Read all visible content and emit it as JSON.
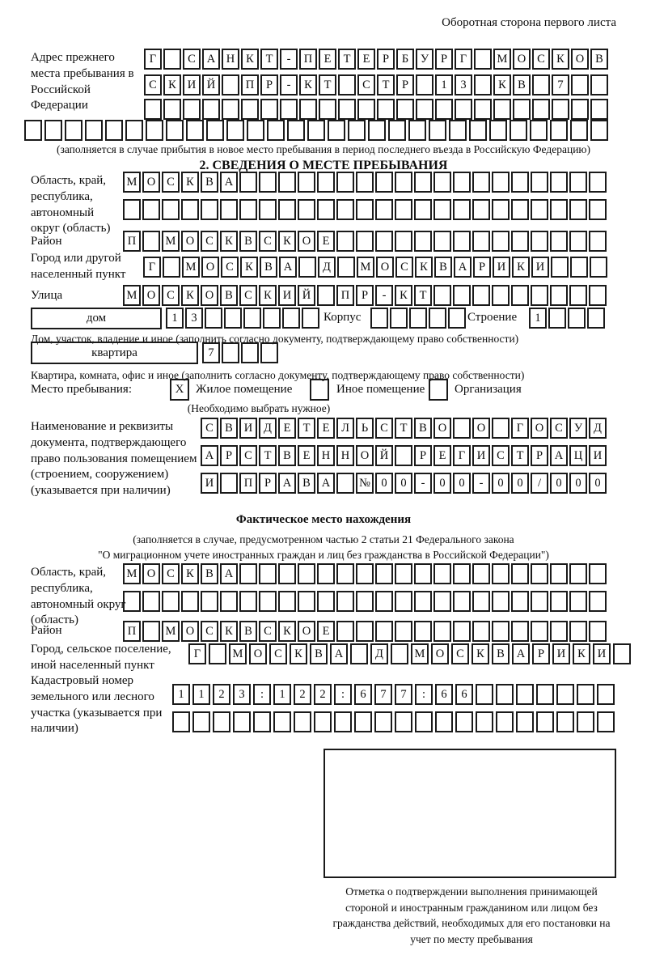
{
  "header": {
    "note": "Оборотная сторона первого листа"
  },
  "prev_address": {
    "label": "Адрес прежнего места пребывания в Российской Федерации",
    "rows": [
      {
        "len": 24,
        "text": "Г САНКТ-ПЕТЕРБУРГ МОСКОВ"
      },
      {
        "len": 24,
        "text": "СКИЙ ПР-КТ СТР 13 КВ 7"
      },
      {
        "len": 24,
        "text": ""
      },
      {
        "len": 29,
        "text": ""
      }
    ],
    "note": "(заполняется в случае прибытия в новое место пребывания в период последнего въезда в Российскую Федерацию)"
  },
  "section2": {
    "title": "2. СВЕДЕНИЯ О МЕСТЕ ПРЕБЫВАНИЯ",
    "region": {
      "label": "Область, край, республика, автономный округ (область)",
      "rows": [
        {
          "len": 25,
          "text": "МОСКВА"
        },
        {
          "len": 25,
          "text": ""
        }
      ]
    },
    "district": {
      "label": "Район",
      "row": {
        "len": 25,
        "text": "П МОСКВСКОЕ"
      }
    },
    "city": {
      "label": "Город или другой населенный пункт",
      "row": {
        "len": 24,
        "text": "Г МОСКВА Д МОСКВАРИКИ"
      }
    },
    "street": {
      "label": "Улица",
      "row": {
        "len": 25,
        "text": "МОСКОВСКИЙ ПР-КТ"
      }
    },
    "house": {
      "type_label": "дом",
      "number": {
        "len": 8,
        "text": "13"
      },
      "korpus_label": "Корпус",
      "korpus": {
        "len": 5,
        "text": ""
      },
      "stroenie_label": "Строение",
      "stroenie": {
        "len": 4,
        "text": "1"
      },
      "caption": "Дом, участок, владение и иное (заполнить согласно документу, подтверждающему право собственности)"
    },
    "apartment": {
      "type_label": "квартира",
      "number": {
        "len": 4,
        "text": "7"
      },
      "caption": "Квартира, комната, офис и иное (заполнить согласно документу, подтверждающему право собственности)"
    },
    "stay_type": {
      "label": "Место пребывания:",
      "options": [
        {
          "label": "Жилое помещение",
          "checked": "X"
        },
        {
          "label": "Иное помещение",
          "checked": ""
        },
        {
          "label": "Организация",
          "checked": ""
        }
      ],
      "note": "(Необходимо выбрать нужное)"
    },
    "document": {
      "label": "Наименование и реквизиты документа, подтверждающего право пользования помещением (строением, сооружением) (указывается при наличии)",
      "rows": [
        {
          "len": 21,
          "text": "СВИДЕТЕЛЬСТВО О ГОСУД"
        },
        {
          "len": 21,
          "text": "АРСТВЕННОЙ РЕГИСТРАЦИ"
        },
        {
          "len": 21,
          "text": "И ПРАВА №00-00-00/000"
        }
      ]
    }
  },
  "actual_location": {
    "title": "Фактическое место нахождения",
    "note_line1": "(заполняется в случае, предусмотренном частью 2 статьи 21 Федерального закона",
    "note_line2": "\"О миграционном учете иностранных граждан и лиц без гражданства в Российской Федерации\")",
    "region": {
      "label": "Область, край, республика, автономный округ (область)",
      "rows": [
        {
          "len": 25,
          "text": "МОСКВА"
        },
        {
          "len": 25,
          "text": ""
        }
      ]
    },
    "district": {
      "label": "Район",
      "row": {
        "len": 25,
        "text": "П МОСКВСКОЕ"
      }
    },
    "city": {
      "label": "Город, сельское поселение, иной населенный пункт",
      "row": {
        "len": 22,
        "text": "Г МОСКВА Д МОСКВАРИКИ"
      }
    },
    "cadastral": {
      "label": "Кадастровый номер земельного или лесного участка (указывается при наличии)",
      "rows": [
        {
          "len": 22,
          "text": "1123:122:677:66"
        },
        {
          "len": 22,
          "text": ""
        }
      ]
    }
  },
  "stamp": {
    "caption": "Отметка о подтверждении выполнения принимающей стороной и иностранным гражданином или лицом без гражданства действий, необходимых для его постановки на учет по месту пребывания"
  }
}
